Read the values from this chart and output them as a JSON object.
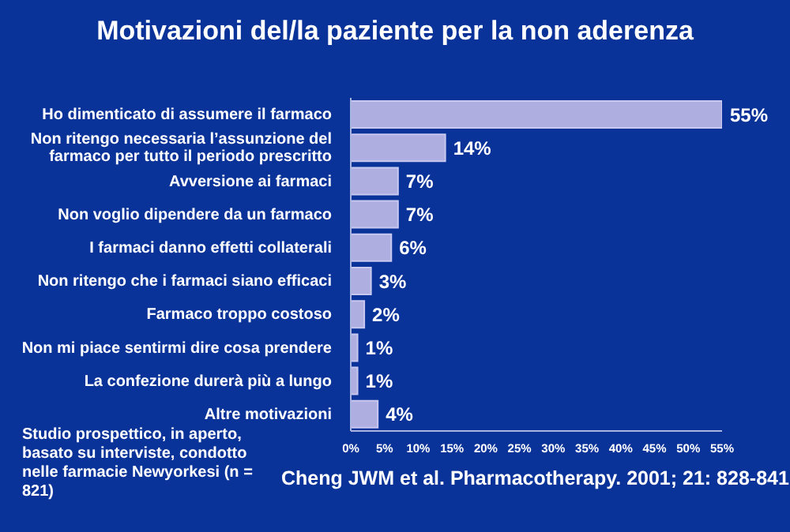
{
  "chart_data": {
    "type": "bar",
    "orientation": "horizontal",
    "title": "Motivazioni del/la paziente per la non aderenza",
    "categories": [
      "Ho dimenticato di assumere il farmaco",
      "Non ritengo necessaria l’assunzione del farmaco per tutto il periodo prescritto",
      "Avversione ai farmaci",
      "Non voglio dipendere da un farmaco",
      "I farmaci danno effetti collaterali",
      "Non ritengo che i farmaci siano efficaci",
      "Farmaco troppo costoso",
      "Non mi piace sentirmi dire cosa prendere",
      "La confezione durerà più a lungo",
      "Altre motivazioni"
    ],
    "values": [
      55,
      14,
      7,
      7,
      6,
      3,
      2,
      1,
      1,
      4
    ],
    "value_labels": [
      "55%",
      "14%",
      "7%",
      "7%",
      "6%",
      "3%",
      "2%",
      "1%",
      "1%",
      "4%"
    ],
    "color": "#aeaee0",
    "xlim": [
      0,
      55
    ],
    "xticks": [
      {
        "value": 0,
        "label": "0%"
      },
      {
        "value": 5,
        "label": "5%"
      },
      {
        "value": 10,
        "label": "10%"
      },
      {
        "value": 15,
        "label": "15%"
      },
      {
        "value": 20,
        "label": "20%"
      },
      {
        "value": 25,
        "label": "25%"
      },
      {
        "value": 30,
        "label": "30%"
      },
      {
        "value": 35,
        "label": "35%"
      },
      {
        "value": 40,
        "label": "40%"
      },
      {
        "value": 45,
        "label": "45%"
      },
      {
        "value": 50,
        "label": "50%"
      },
      {
        "value": 55,
        "label": "55%"
      }
    ],
    "grid": false,
    "legend": false,
    "annotations": [
      "Studio prospettico, in aperto, basato su interviste, condotto nelle farmacie Newyorkesi (n = 821)",
      "Cheng JWM et al. Pharmacotherapy. 2001; 21: 828-841"
    ]
  }
}
